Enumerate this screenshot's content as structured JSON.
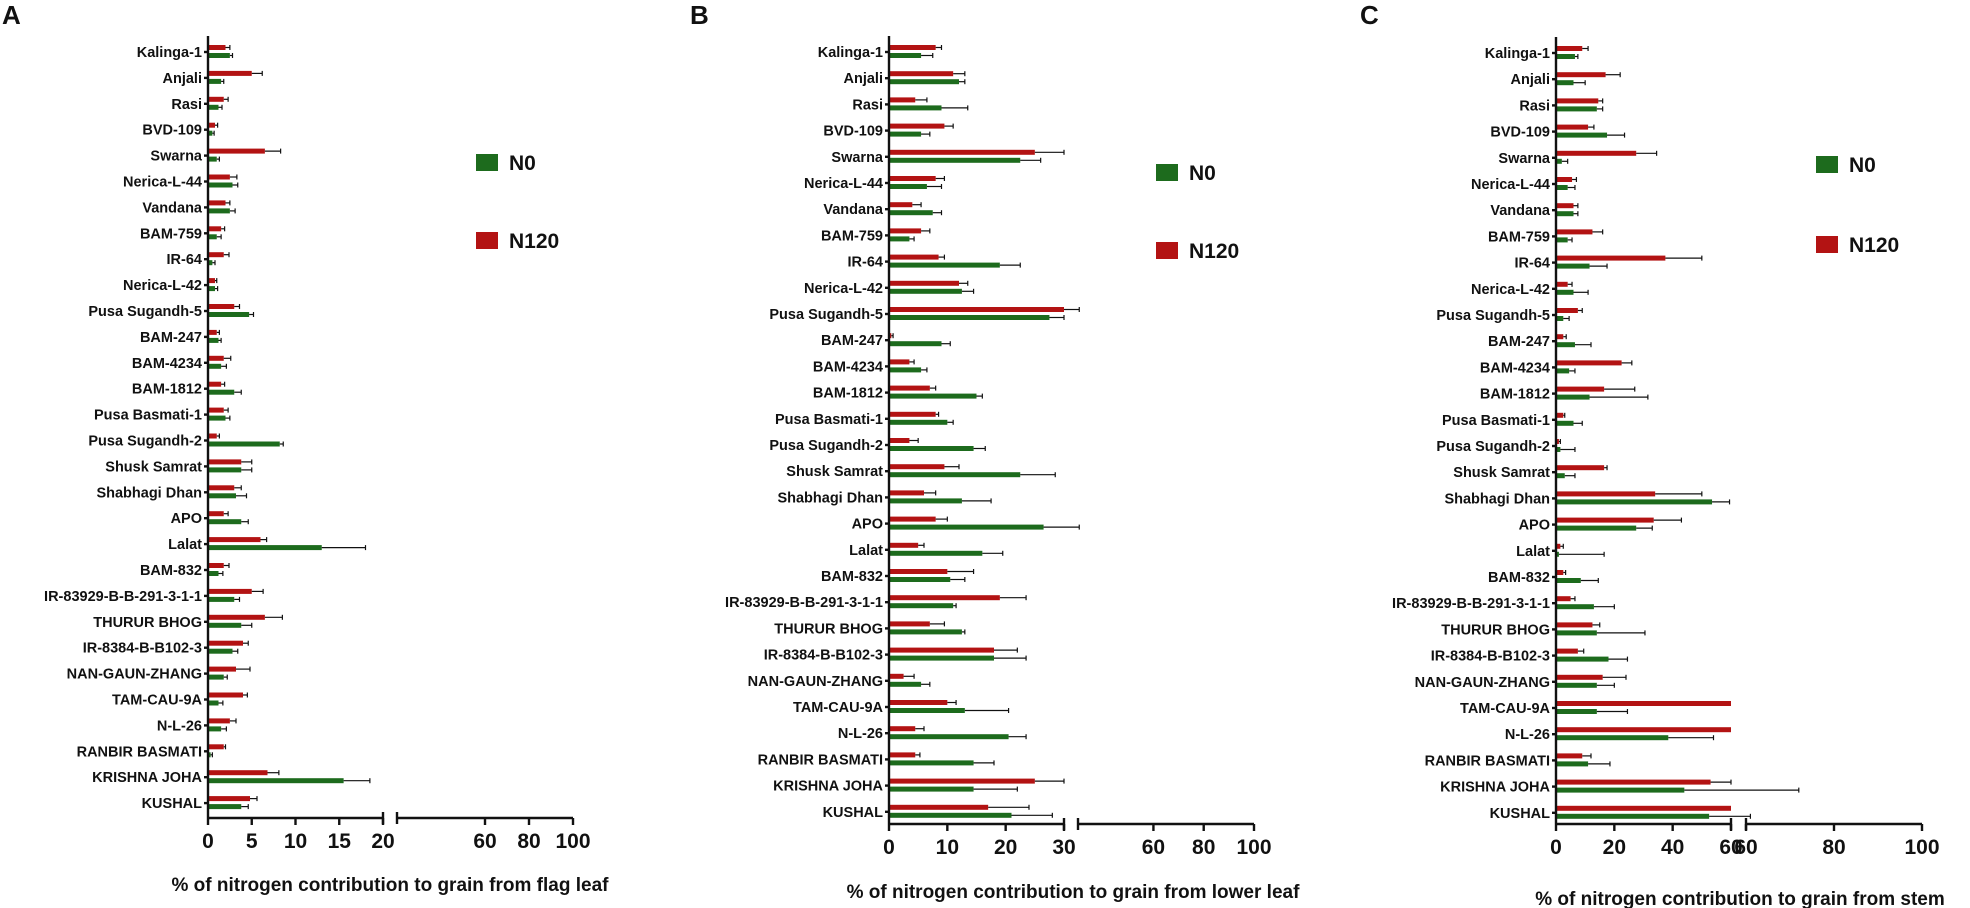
{
  "colors": {
    "n0": "#1d6b1d",
    "n120": "#b31313",
    "axis": "#111111"
  },
  "categories": [
    "Kalinga-1",
    "Anjali",
    "Rasi",
    "BVD-109",
    "Swarna",
    "Nerica-L-44",
    "Vandana",
    "BAM-759",
    "IR-64",
    "Nerica-L-42",
    "Pusa Sugandh-5",
    "BAM-247",
    "BAM-4234",
    "BAM-1812",
    "Pusa Basmati-1",
    "Pusa Sugandh-2",
    "Shusk Samrat",
    "Shabhagi Dhan",
    "APO",
    "Lalat",
    "BAM-832",
    "IR-83929-B-B-291-3-1-1",
    "THURUR BHOG",
    "IR-8384-B-B102-3",
    "NAN-GAUN-ZHANG",
    "TAM-CAU-9A",
    "N-L-26",
    "RANBIR BASMATI",
    "KRISHNA JOHA",
    "KUSHAL"
  ],
  "legend": {
    "n0": "N0",
    "n120": "N120"
  },
  "chart_data": [
    {
      "panel": "A",
      "type": "bar",
      "orientation": "horizontal",
      "xlabel": "% of nitrogen contribution to grain from flag leaf",
      "xlim_segment1": [
        0,
        20
      ],
      "xlim_segment2": [
        20,
        100
      ],
      "ticks_segment1": [
        0,
        5,
        10,
        15,
        20
      ],
      "ticks_segment2": [
        60,
        80,
        100
      ],
      "series": [
        {
          "name": "N120",
          "values": [
            2.0,
            5.0,
            1.8,
            0.8,
            6.5,
            2.5,
            2.0,
            1.5,
            1.8,
            0.8,
            3.0,
            1.0,
            1.8,
            1.5,
            1.8,
            1.0,
            3.8,
            3.0,
            1.8,
            6.0,
            1.8,
            5.0,
            6.5,
            4.0,
            3.2,
            4.0,
            2.5,
            1.8,
            6.8,
            4.8
          ],
          "errors": [
            0.5,
            1.2,
            0.5,
            0.3,
            1.8,
            0.8,
            0.5,
            0.4,
            0.6,
            0.2,
            0.6,
            0.3,
            0.8,
            0.4,
            0.5,
            0.3,
            1.2,
            0.8,
            0.5,
            0.7,
            0.6,
            1.3,
            2.0,
            0.6,
            1.6,
            0.5,
            0.7,
            0.2,
            1.3,
            0.8
          ]
        },
        {
          "name": "N0",
          "values": [
            2.5,
            1.5,
            1.2,
            0.5,
            1.0,
            2.8,
            2.5,
            1.0,
            0.5,
            0.8,
            4.7,
            1.2,
            1.5,
            3.0,
            2.0,
            8.2,
            3.8,
            3.2,
            3.8,
            13.0,
            1.2,
            3.0,
            3.8,
            2.8,
            1.8,
            1.2,
            1.5,
            0.3,
            15.5,
            3.8
          ],
          "errors": [
            0.3,
            0.3,
            0.4,
            0.2,
            0.3,
            0.6,
            0.6,
            0.5,
            0.3,
            0.3,
            0.5,
            0.3,
            0.6,
            0.8,
            0.5,
            0.4,
            1.2,
            1.2,
            0.8,
            5.0,
            0.5,
            0.6,
            1.2,
            0.6,
            0.4,
            0.5,
            0.6,
            0.2,
            3.0,
            0.8
          ]
        }
      ]
    },
    {
      "panel": "B",
      "type": "bar",
      "orientation": "horizontal",
      "xlabel": "% of nitrogen contribution to grain from lower leaf",
      "xlim_segment1": [
        0,
        30
      ],
      "xlim_segment2": [
        30,
        100
      ],
      "ticks_segment1": [
        0,
        10,
        20,
        30
      ],
      "ticks_segment2": [
        60,
        80,
        100
      ],
      "series": [
        {
          "name": "N120",
          "values": [
            8.0,
            11.0,
            4.5,
            9.5,
            25.0,
            8.0,
            4.0,
            5.5,
            8.5,
            12.0,
            30.0,
            0.4,
            3.5,
            7.0,
            8.0,
            3.5,
            9.5,
            6.0,
            8.0,
            5.0,
            10.0,
            19.0,
            7.0,
            18.0,
            2.5,
            10.0,
            4.5,
            4.5,
            25.0,
            17.0
          ],
          "errors": [
            1.0,
            2.0,
            2.0,
            1.5,
            5.0,
            1.5,
            1.5,
            1.5,
            1.0,
            1.5,
            0.5,
            0.3,
            0.8,
            1.0,
            0.5,
            1.5,
            2.5,
            2.0,
            2.0,
            1.0,
            4.5,
            4.5,
            2.5,
            4.0,
            1.8,
            1.5,
            1.5,
            0.8,
            5.0,
            7.0
          ]
        },
        {
          "name": "N0",
          "values": [
            5.5,
            12.0,
            9.0,
            5.5,
            22.5,
            6.5,
            7.5,
            3.5,
            19.0,
            12.5,
            27.5,
            9.0,
            5.5,
            15.0,
            10.0,
            14.5,
            22.5,
            12.5,
            26.5,
            16.0,
            10.5,
            11.0,
            12.5,
            18.0,
            5.5,
            13.0,
            20.5,
            14.5,
            14.5,
            21.0
          ],
          "errors": [
            2.0,
            1.0,
            4.5,
            1.5,
            3.5,
            2.5,
            1.5,
            0.8,
            3.5,
            2.0,
            2.5,
            1.5,
            1.0,
            1.0,
            1.0,
            2.0,
            6.0,
            5.0,
            4.0,
            3.5,
            2.5,
            0.5,
            0.5,
            5.5,
            1.5,
            7.5,
            3.0,
            3.5,
            7.5,
            7.0
          ]
        }
      ]
    },
    {
      "panel": "C",
      "type": "bar",
      "orientation": "horizontal",
      "xlabel": "% of nitrogen contribution to grain from stem",
      "xlim_segment1": [
        0,
        60
      ],
      "xlim_segment2": [
        60,
        100
      ],
      "ticks_segment1": [
        0,
        20,
        40,
        60
      ],
      "ticks_segment2": [
        60,
        80,
        100
      ],
      "series": [
        {
          "name": "N120",
          "values": [
            9.0,
            17.0,
            14.5,
            11.0,
            27.5,
            5.5,
            6.0,
            12.5,
            37.5,
            4.0,
            7.5,
            2.5,
            22.5,
            16.5,
            2.5,
            1.0,
            16.5,
            34.0,
            33.5,
            1.5,
            2.5,
            5.0,
            12.5,
            7.5,
            16.0,
            60.0,
            60.0,
            9.0,
            53.0,
            60.0
          ],
          "errors": [
            2.0,
            5.0,
            1.5,
            2.0,
            7.0,
            1.5,
            1.5,
            3.5,
            12.5,
            1.5,
            1.5,
            1.0,
            3.5,
            10.5,
            0.5,
            0.5,
            1.0,
            16.0,
            9.5,
            1.0,
            0.8,
            1.5,
            2.5,
            2.0,
            8.0,
            0.0,
            0.0,
            3.0,
            7.0,
            0.0
          ]
        },
        {
          "name": "N0",
          "values": [
            6.5,
            6.0,
            14.0,
            17.5,
            2.0,
            4.0,
            6.0,
            4.0,
            11.5,
            6.0,
            2.5,
            6.5,
            4.5,
            11.5,
            6.0,
            1.5,
            3.0,
            53.5,
            27.5,
            1.0,
            8.5,
            13.0,
            14.0,
            18.0,
            14.0,
            14.0,
            38.5,
            11.0,
            44.0,
            52.5
          ],
          "errors": [
            1.0,
            4.0,
            2.0,
            6.0,
            2.0,
            2.5,
            1.5,
            1.5,
            6.0,
            5.0,
            2.0,
            5.5,
            2.0,
            20.0,
            3.0,
            5.0,
            3.5,
            6.0,
            5.5,
            15.5,
            6.0,
            7.0,
            16.5,
            6.5,
            6.0,
            10.5,
            15.5,
            7.5,
            28.0,
            8.5
          ]
        }
      ]
    }
  ]
}
